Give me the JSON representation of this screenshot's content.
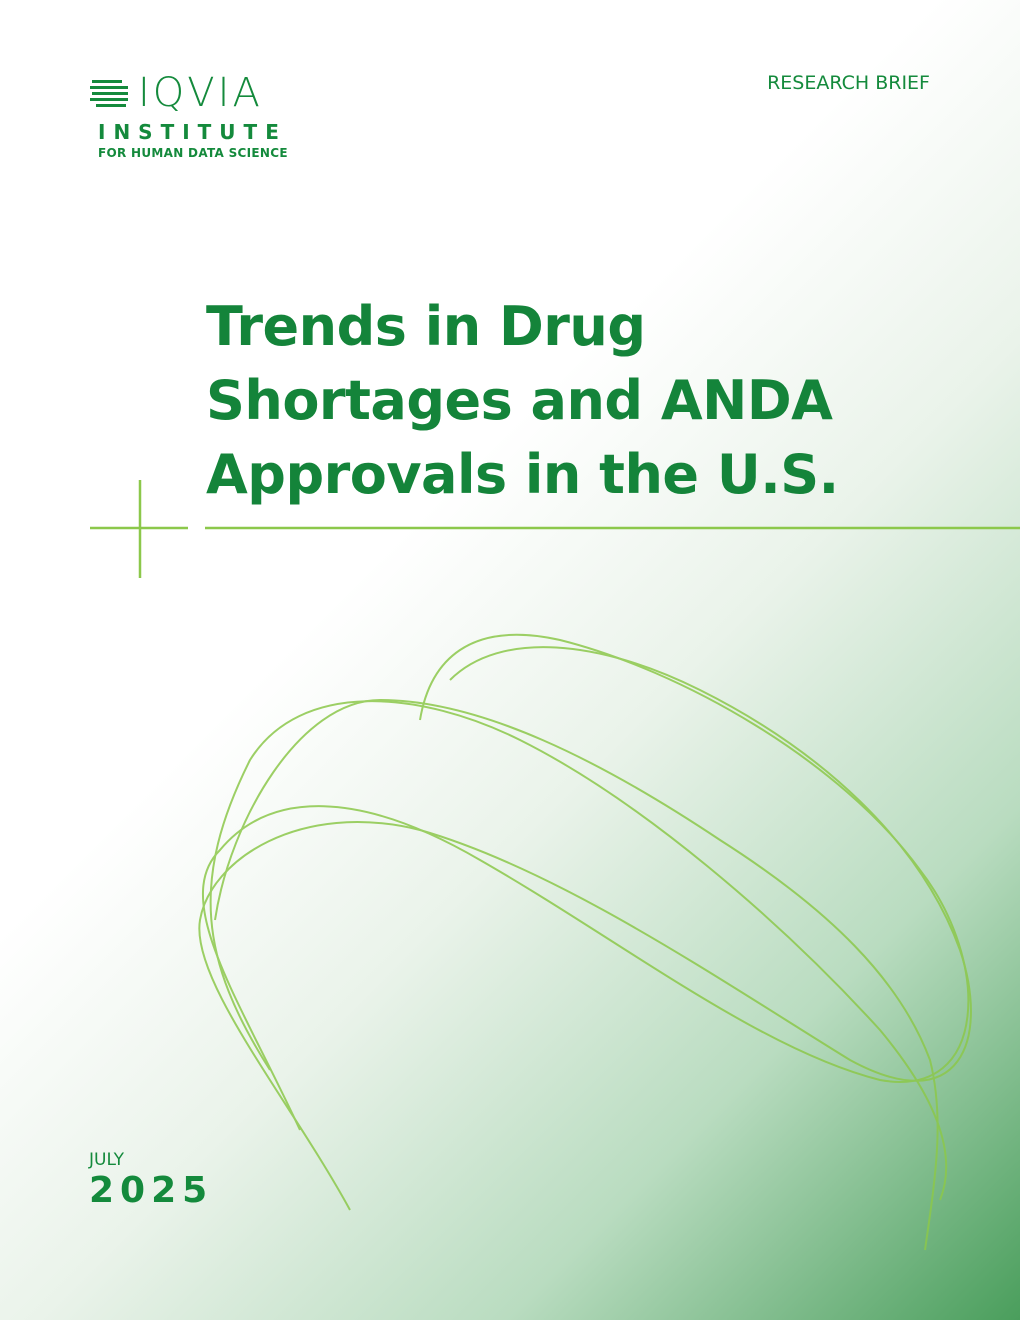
{
  "header": {
    "logo": {
      "name": "IQVIA",
      "line1": "INSTITUTE",
      "line2": "FOR HUMAN DATA SCIENCE"
    },
    "label": "RESEARCH BRIEF"
  },
  "title": "Trends in Drug Shortages and ANDA Approvals in the U.S.",
  "date": {
    "month": "JULY",
    "year": "2025"
  }
}
